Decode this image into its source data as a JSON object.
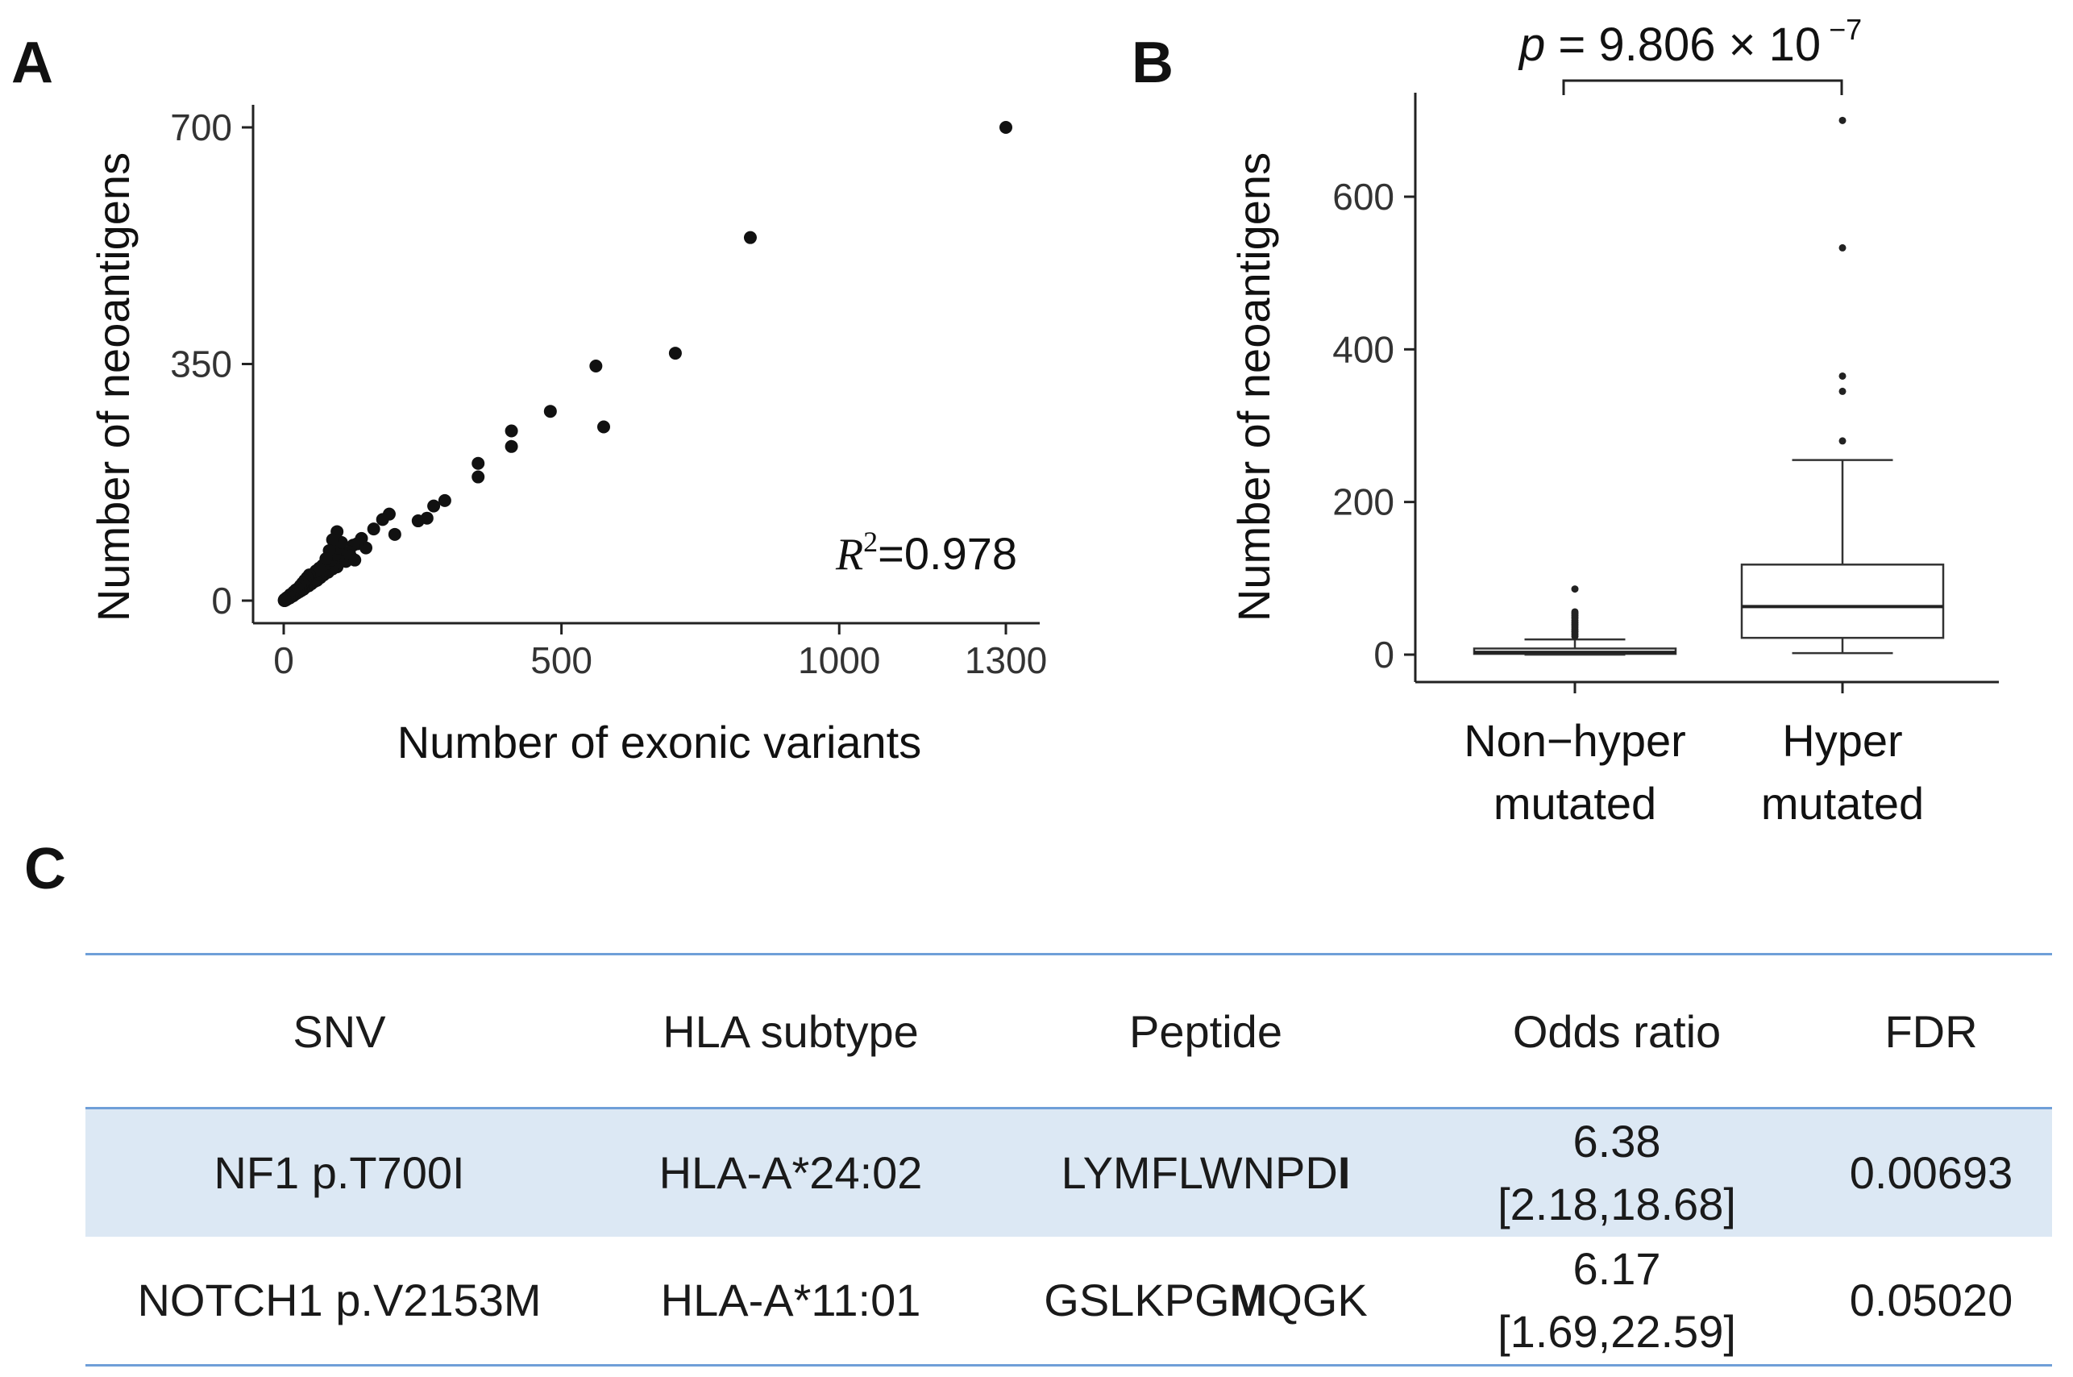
{
  "panels": {
    "a": "A",
    "b": "B",
    "c": "C"
  },
  "chart_data": [
    {
      "panel": "A",
      "type": "scatter",
      "xlabel": "Number of exonic variants",
      "ylabel": "Number of neoantigens",
      "xlim": [
        0,
        1300
      ],
      "ylim": [
        0,
        700
      ],
      "xticks": [
        0,
        500,
        1000,
        1300
      ],
      "yticks": [
        0,
        350,
        700
      ],
      "annotation": {
        "prefix": "R",
        "sup": "2",
        "value": "=0.978"
      },
      "points": [
        [
          1300,
          700
        ],
        [
          840,
          537
        ],
        [
          705,
          366
        ],
        [
          562,
          347
        ],
        [
          480,
          280
        ],
        [
          576,
          257
        ],
        [
          410,
          251
        ],
        [
          410,
          228
        ],
        [
          350,
          203
        ],
        [
          350,
          183
        ],
        [
          290,
          148
        ],
        [
          270,
          140
        ],
        [
          258,
          122
        ],
        [
          242,
          118
        ],
        [
          190,
          128
        ],
        [
          178,
          120
        ],
        [
          200,
          98
        ],
        [
          162,
          106
        ],
        [
          148,
          78
        ],
        [
          140,
          92
        ],
        [
          132,
          84
        ],
        [
          125,
          82
        ],
        [
          118,
          72
        ],
        [
          110,
          64
        ],
        [
          102,
          58
        ],
        [
          96,
          50
        ],
        [
          88,
          47
        ],
        [
          80,
          42
        ],
        [
          72,
          38
        ],
        [
          66,
          34
        ],
        [
          60,
          30
        ],
        [
          55,
          28
        ],
        [
          50,
          25
        ],
        [
          45,
          22
        ],
        [
          40,
          20
        ],
        [
          36,
          17
        ],
        [
          32,
          15
        ],
        [
          28,
          13
        ],
        [
          24,
          11
        ],
        [
          20,
          9
        ],
        [
          17,
          7
        ],
        [
          14,
          6
        ],
        [
          11,
          4
        ],
        [
          8,
          3
        ],
        [
          6,
          2
        ],
        [
          4,
          1
        ],
        [
          2,
          0
        ],
        [
          1,
          1
        ],
        [
          3,
          2
        ],
        [
          5,
          4
        ],
        [
          9,
          6
        ],
        [
          13,
          8
        ],
        [
          18,
          11
        ],
        [
          22,
          14
        ],
        [
          27,
          17
        ],
        [
          31,
          21
        ],
        [
          35,
          25
        ],
        [
          39,
          28
        ],
        [
          43,
          31
        ],
        [
          48,
          34
        ],
        [
          52,
          36
        ],
        [
          56,
          32
        ],
        [
          62,
          40
        ],
        [
          68,
          44
        ],
        [
          74,
          46
        ],
        [
          78,
          55
        ],
        [
          85,
          60
        ],
        [
          92,
          68
        ],
        [
          98,
          78
        ],
        [
          104,
          86
        ],
        [
          70,
          52
        ],
        [
          64,
          48
        ],
        [
          58,
          44
        ],
        [
          46,
          38
        ],
        [
          42,
          34
        ],
        [
          38,
          30
        ],
        [
          34,
          26
        ],
        [
          30,
          22
        ],
        [
          26,
          18
        ],
        [
          22,
          16
        ],
        [
          18,
          13
        ],
        [
          15,
          10
        ],
        [
          12,
          9
        ],
        [
          10,
          7
        ],
        [
          7,
          5
        ],
        [
          5,
          3
        ],
        [
          3,
          1
        ],
        [
          2,
          2
        ],
        [
          1,
          0
        ],
        [
          96,
          102
        ],
        [
          88,
          90
        ],
        [
          82,
          74
        ],
        [
          76,
          62
        ],
        [
          112,
          58
        ],
        [
          120,
          66
        ],
        [
          128,
          60
        ]
      ]
    },
    {
      "panel": "B",
      "type": "box",
      "ylabel": "Number of neoantigens",
      "ylim": [
        -30,
        730
      ],
      "yticks": [
        0,
        200,
        400,
        600
      ],
      "categories": [
        {
          "line1": "Non−hyper",
          "line2": "mutated"
        },
        {
          "line1": "Hyper",
          "line2": "mutated"
        }
      ],
      "boxes": [
        {
          "min": 0,
          "q1": 1,
          "median": 3,
          "q3": 8,
          "whisker_high": 20,
          "outliers": [
            24,
            27,
            30,
            33,
            36,
            39,
            42,
            45,
            48,
            51,
            54,
            56,
            86
          ]
        },
        {
          "min": 2,
          "q1": 22,
          "median": 63,
          "q3": 118,
          "whisker_high": 255,
          "outliers": [
            280,
            345,
            365,
            533,
            700
          ]
        }
      ],
      "pvalue": {
        "p": "p",
        "eq": " = 9.806 ",
        "times": "×",
        "base": " 10",
        "exp": " −7"
      }
    }
  ],
  "table": {
    "headers": [
      "SNV",
      "HLA subtype",
      "Peptide",
      "Odds ratio",
      "FDR"
    ],
    "rows": [
      {
        "snv": "NF1 p.T700I",
        "hla": "HLA-A*24:02",
        "pep_pre": "LYMFLWNPD",
        "pep_bold": "I",
        "pep_post": "",
        "or": "6.38",
        "ci": "[2.18,18.68]",
        "fdr": "0.00693"
      },
      {
        "snv": "NOTCH1 p.V2153M",
        "hla": "HLA-A*11:01",
        "pep_pre": "GSLKPG",
        "pep_bold": "M",
        "pep_post": "QGK",
        "or": "6.17",
        "ci": "[1.69,22.59]",
        "fdr": "0.05020"
      }
    ]
  }
}
